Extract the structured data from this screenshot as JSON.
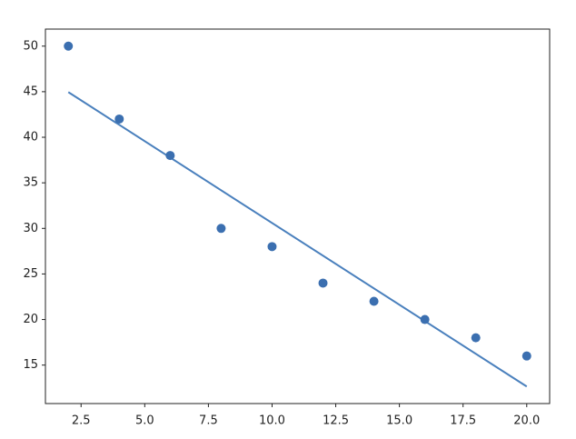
{
  "chart_data": {
    "type": "scatter",
    "points": {
      "x": [
        2,
        4,
        6,
        8,
        10,
        12,
        14,
        16,
        18,
        20
      ],
      "y": [
        50,
        42,
        38,
        30,
        28,
        24,
        22,
        20,
        18,
        16
      ],
      "color": "#3b6fb0"
    },
    "fit_line": {
      "x": [
        2,
        20
      ],
      "y": [
        44.95,
        12.65
      ],
      "color": "#4a80bd"
    },
    "xlim": [
      1.1,
      20.9
    ],
    "ylim": [
      10.78,
      51.87
    ],
    "xticks": [
      2.5,
      {
        "value": 5,
        "label": "5.0"
      },
      7.5,
      {
        "value": 10,
        "label": "10.0"
      },
      12.5,
      {
        "value": 15,
        "label": "15.0"
      },
      17.5,
      {
        "value": 20,
        "label": "20.0"
      }
    ],
    "yticks": [
      15,
      20,
      25,
      30,
      35,
      40,
      45,
      50
    ]
  }
}
